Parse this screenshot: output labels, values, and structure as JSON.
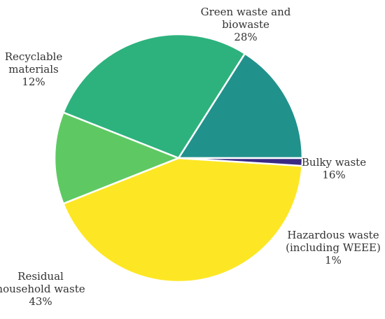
{
  "chart_data": {
    "type": "pie",
    "title": "",
    "start_angle_deg": 0,
    "direction": "counterclockwise",
    "slices": [
      {
        "name": "Bulky waste",
        "value": 16,
        "label_lines": [
          "Bulky waste",
          "16%"
        ],
        "color": "#21918c"
      },
      {
        "name": "Green waste and biowaste",
        "value": 28,
        "label_lines": [
          "Green waste and",
          "biowaste",
          "28%"
        ],
        "color": "#2db27d"
      },
      {
        "name": "Recyclable materials",
        "value": 12,
        "label_lines": [
          "Recyclable",
          "materials",
          "12%"
        ],
        "color": "#5ec962"
      },
      {
        "name": "Residual household waste",
        "value": 43,
        "label_lines": [
          "Residual",
          "household waste",
          "43%"
        ],
        "color": "#fde725"
      },
      {
        "name": "Hazardous waste (including WEEE)",
        "value": 1,
        "label_lines": [
          "Hazardous waste",
          "(including WEEE)",
          "1%"
        ],
        "color": "#3b2a83"
      }
    ]
  }
}
